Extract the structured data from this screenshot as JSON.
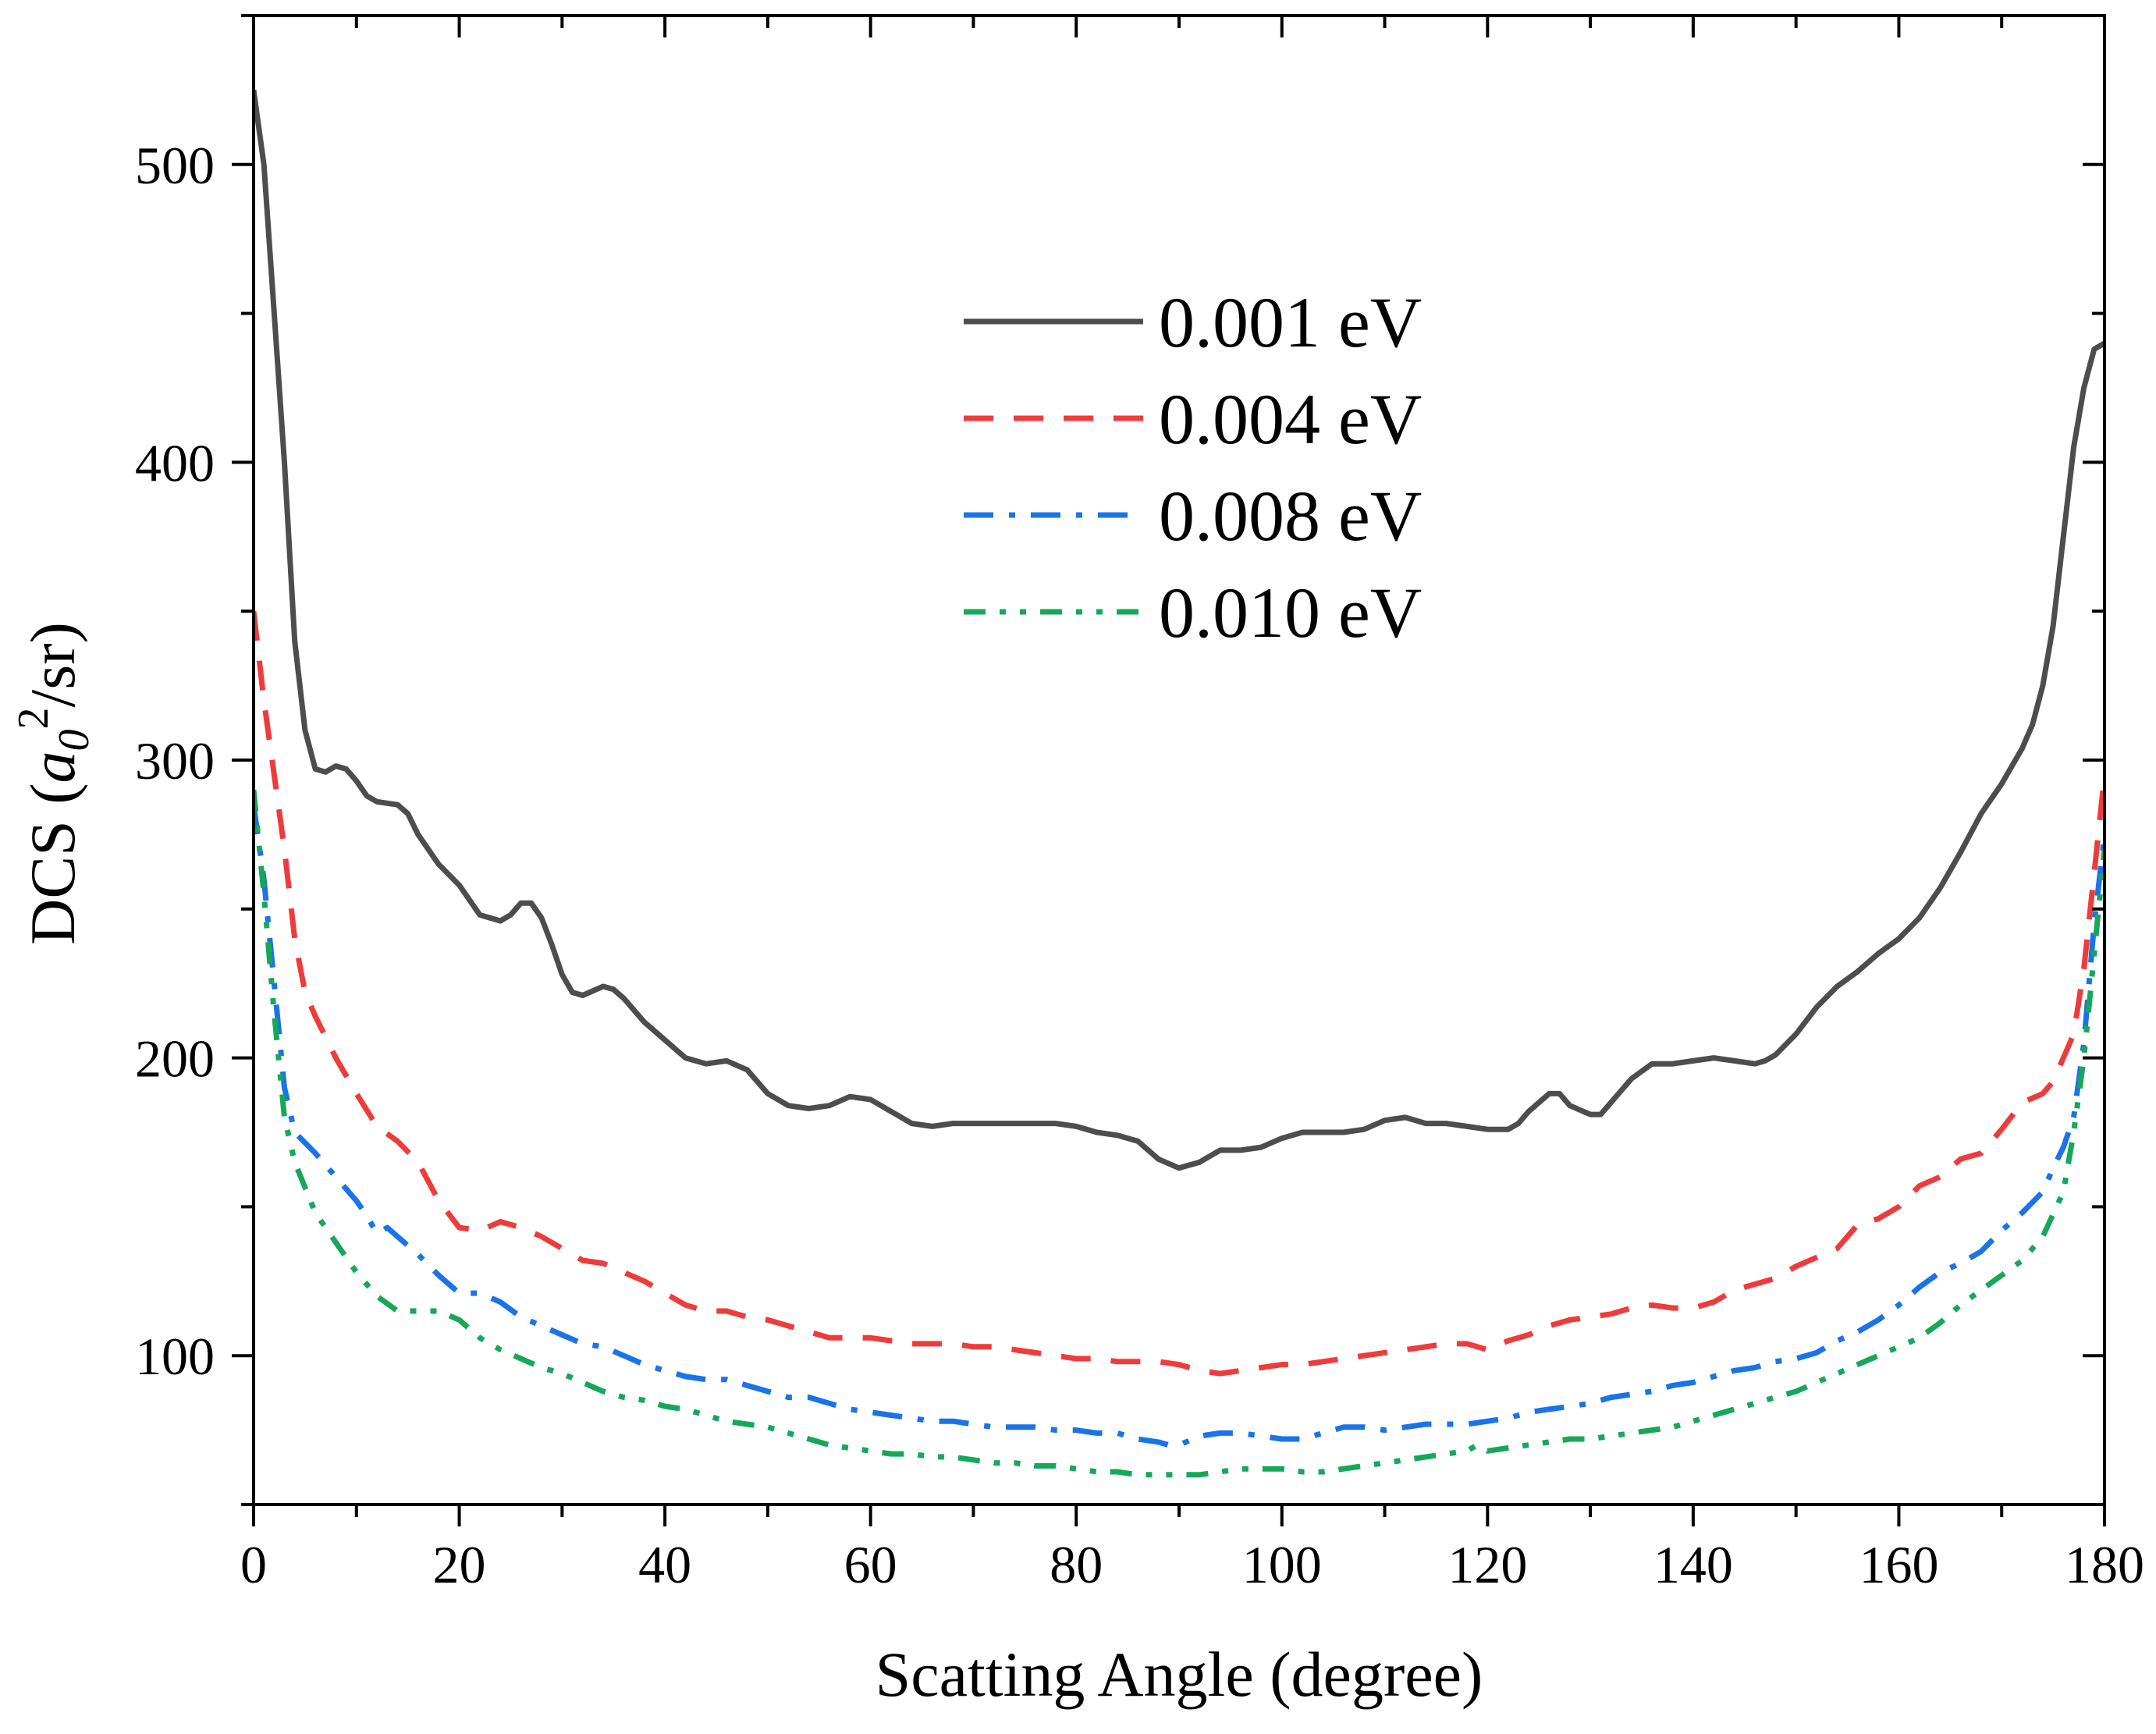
{
  "chart_data": {
    "type": "line",
    "title": "",
    "xlabel": "Scatting Angle (degree)",
    "ylabel_parts": {
      "prefix": "DCS (",
      "symbol": "a",
      "subscript": "0",
      "superscript": "2",
      "suffix": "/sr)"
    },
    "xlim": [
      0,
      180
    ],
    "ylim": [
      50,
      550
    ],
    "xticks": [
      0,
      20,
      40,
      60,
      80,
      100,
      120,
      140,
      160,
      180
    ],
    "yticks": [
      100,
      200,
      300,
      400,
      500
    ],
    "grid": false,
    "legend_position": "top-center",
    "series": [
      {
        "name": "0.001 eV",
        "color": "#4d4d4d",
        "dash": "solid",
        "x": [
          0,
          1,
          2,
          3,
          4,
          5,
          6,
          7,
          8,
          9,
          10,
          11,
          12,
          14,
          15,
          16,
          18,
          20,
          22,
          24,
          25,
          26,
          27,
          28,
          29,
          30,
          31,
          32,
          34,
          35,
          36,
          38,
          40,
          42,
          44,
          46,
          48,
          50,
          52,
          54,
          56,
          58,
          60,
          62,
          64,
          66,
          68,
          70,
          72,
          74,
          76,
          78,
          80,
          82,
          84,
          86,
          88,
          90,
          92,
          93,
          94,
          96,
          98,
          100,
          102,
          104,
          106,
          108,
          110,
          112,
          114,
          116,
          118,
          120,
          122,
          123,
          124,
          126,
          127,
          128,
          130,
          131,
          132,
          134,
          136,
          138,
          140,
          142,
          144,
          146,
          147,
          148,
          150,
          152,
          154,
          156,
          158,
          160,
          162,
          164,
          166,
          168,
          170,
          172,
          173,
          174,
          175,
          176,
          177,
          178,
          179,
          180
        ],
        "y": [
          525,
          500,
          450,
          400,
          340,
          310,
          297,
          296,
          298,
          297,
          293,
          288,
          286,
          285,
          282,
          275,
          265,
          258,
          248,
          246,
          248,
          252,
          252,
          247,
          238,
          228,
          222,
          221,
          224,
          223,
          220,
          212,
          206,
          200,
          198,
          199,
          196,
          188,
          184,
          183,
          184,
          187,
          186,
          182,
          178,
          177,
          178,
          178,
          178,
          178,
          178,
          178,
          177,
          175,
          174,
          172,
          166,
          163,
          165,
          167,
          169,
          169,
          170,
          173,
          175,
          175,
          175,
          176,
          179,
          180,
          178,
          178,
          177,
          176,
          176,
          178,
          182,
          188,
          188,
          184,
          181,
          181,
          185,
          193,
          198,
          198,
          199,
          200,
          199,
          198,
          199,
          201,
          208,
          217,
          224,
          229,
          235,
          240,
          247,
          257,
          269,
          282,
          292,
          304,
          312,
          325,
          345,
          375,
          405,
          425,
          438,
          440
        ]
      },
      {
        "name": "0.004 eV",
        "color": "#ef3b3b",
        "dash": "dash",
        "x": [
          0,
          1,
          2,
          3,
          4,
          5,
          6,
          8,
          10,
          12,
          14,
          16,
          18,
          20,
          22,
          24,
          26,
          28,
          30,
          32,
          34,
          36,
          38,
          40,
          42,
          44,
          46,
          48,
          50,
          52,
          54,
          56,
          58,
          60,
          62,
          64,
          66,
          68,
          70,
          72,
          74,
          76,
          78,
          80,
          82,
          84,
          86,
          88,
          90,
          92,
          94,
          96,
          98,
          100,
          102,
          104,
          106,
          108,
          110,
          112,
          114,
          116,
          118,
          120,
          122,
          124,
          126,
          128,
          130,
          132,
          134,
          136,
          138,
          140,
          142,
          144,
          146,
          148,
          150,
          152,
          154,
          156,
          158,
          160,
          162,
          164,
          166,
          168,
          170,
          172,
          174,
          175,
          176,
          177,
          178,
          179,
          180
        ],
        "y": [
          350,
          320,
          295,
          270,
          240,
          222,
          214,
          200,
          188,
          177,
          172,
          165,
          152,
          143,
          142,
          145,
          143,
          140,
          136,
          132,
          131,
          128,
          125,
          121,
          117,
          115,
          115,
          113,
          112,
          110,
          108,
          106,
          106,
          106,
          105,
          104,
          104,
          104,
          103,
          103,
          102,
          101,
          100,
          99,
          99,
          98,
          98,
          98,
          97,
          95,
          94,
          95,
          96,
          97,
          97,
          98,
          99,
          100,
          101,
          102,
          103,
          104,
          104,
          102,
          105,
          107,
          110,
          112,
          113,
          114,
          116,
          117,
          116,
          116,
          118,
          122,
          124,
          126,
          130,
          133,
          136,
          144,
          146,
          150,
          157,
          160,
          166,
          168,
          176,
          185,
          188,
          192,
          200,
          208,
          230,
          262,
          295
        ]
      },
      {
        "name": "0.008 eV",
        "color": "#1a73e8",
        "dash": "dashdot",
        "x": [
          0,
          1,
          2,
          3,
          4,
          6,
          8,
          10,
          11,
          12,
          13,
          14,
          16,
          18,
          20,
          22,
          24,
          26,
          28,
          30,
          32,
          34,
          36,
          38,
          40,
          42,
          44,
          46,
          48,
          50,
          52,
          54,
          56,
          58,
          60,
          62,
          64,
          66,
          68,
          70,
          72,
          74,
          76,
          78,
          80,
          82,
          84,
          86,
          88,
          89,
          90,
          92,
          94,
          96,
          98,
          100,
          102,
          104,
          106,
          108,
          110,
          112,
          114,
          116,
          118,
          120,
          122,
          124,
          126,
          128,
          130,
          132,
          134,
          136,
          138,
          140,
          142,
          144,
          146,
          148,
          150,
          152,
          154,
          156,
          158,
          160,
          162,
          164,
          166,
          168,
          170,
          172,
          174,
          175,
          176,
          177,
          178,
          179,
          180
        ],
        "y": [
          285,
          260,
          225,
          190,
          175,
          168,
          160,
          152,
          147,
          141,
          143,
          140,
          134,
          127,
          121,
          121,
          118,
          113,
          110,
          107,
          104,
          103,
          100,
          97,
          95,
          93,
          92,
          92,
          90,
          88,
          86,
          86,
          84,
          82,
          81,
          80,
          79,
          78,
          78,
          77,
          76,
          76,
          76,
          75,
          75,
          74,
          74,
          72,
          71,
          70,
          70,
          73,
          74,
          74,
          73,
          72,
          72,
          74,
          76,
          76,
          75,
          76,
          77,
          77,
          77,
          78,
          79,
          81,
          82,
          83,
          84,
          86,
          87,
          88,
          90,
          91,
          93,
          95,
          96,
          98,
          99,
          101,
          105,
          108,
          112,
          117,
          123,
          128,
          131,
          135,
          142,
          148,
          155,
          163,
          170,
          180,
          205,
          245,
          275
        ]
      },
      {
        "name": "0.010 eV",
        "color": "#16a85a",
        "dash": "dashdotdot",
        "x": [
          0,
          1,
          2,
          3,
          4,
          6,
          8,
          10,
          12,
          14,
          16,
          18,
          20,
          22,
          24,
          26,
          28,
          30,
          32,
          34,
          36,
          38,
          40,
          42,
          44,
          46,
          48,
          50,
          52,
          54,
          56,
          58,
          60,
          62,
          64,
          66,
          68,
          70,
          72,
          74,
          76,
          78,
          80,
          82,
          84,
          86,
          88,
          90,
          92,
          94,
          96,
          98,
          100,
          102,
          104,
          106,
          108,
          110,
          112,
          114,
          116,
          118,
          119,
          120,
          122,
          124,
          126,
          128,
          130,
          132,
          134,
          136,
          138,
          140,
          142,
          144,
          146,
          148,
          150,
          152,
          154,
          156,
          158,
          160,
          162,
          164,
          166,
          168,
          170,
          172,
          174,
          176,
          177,
          178,
          179,
          180
        ],
        "y": [
          290,
          255,
          215,
          180,
          165,
          148,
          138,
          128,
          120,
          115,
          115,
          115,
          112,
          106,
          102,
          99,
          96,
          94,
          91,
          88,
          86,
          85,
          83,
          82,
          80,
          78,
          77,
          76,
          74,
          72,
          70,
          69,
          68,
          67,
          67,
          66,
          66,
          65,
          64,
          64,
          63,
          63,
          62,
          61,
          61,
          60,
          60,
          60,
          60,
          61,
          62,
          62,
          62,
          61,
          61,
          62,
          63,
          64,
          65,
          66,
          67,
          68,
          70,
          68,
          69,
          70,
          71,
          72,
          72,
          73,
          74,
          75,
          76,
          78,
          80,
          82,
          84,
          86,
          88,
          91,
          94,
          97,
          100,
          103,
          106,
          111,
          117,
          122,
          127,
          132,
          140,
          155,
          175,
          200,
          235,
          270
        ]
      }
    ]
  }
}
